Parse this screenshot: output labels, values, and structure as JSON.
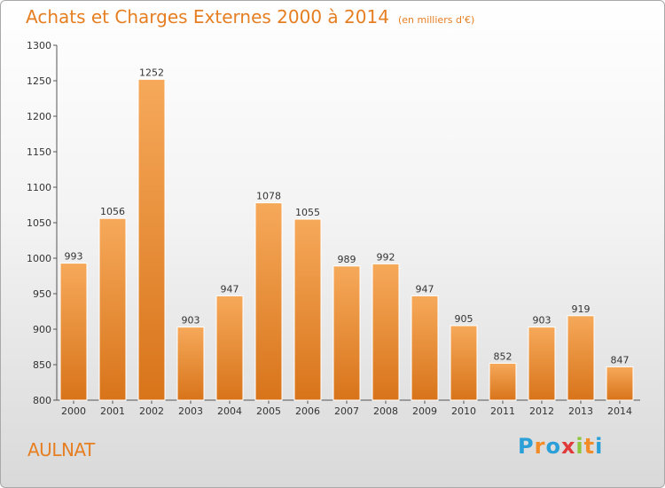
{
  "title": "Achats et Charges Externes 2000 à 2014",
  "unit": "(en milliers d'€)",
  "location": "AULNAT",
  "brand": {
    "letters": [
      "P",
      "r",
      "o",
      "x",
      "i",
      "t",
      "i"
    ],
    "colors": [
      "#2a9fd8",
      "#f28c28",
      "#2a9fd8",
      "#e03a3a",
      "#8cc63f",
      "#f28c28",
      "#2a9fd8"
    ]
  },
  "colors": {
    "bar_light": "#f6a95a",
    "bar_dark": "#d8741a",
    "title": "#e67e22"
  },
  "chart_data": {
    "type": "bar",
    "categories": [
      "2000",
      "2001",
      "2002",
      "2003",
      "2004",
      "2005",
      "2006",
      "2007",
      "2008",
      "2009",
      "2010",
      "2011",
      "2012",
      "2013",
      "2014"
    ],
    "values": [
      993,
      1056,
      1252,
      903,
      947,
      1078,
      1055,
      989,
      992,
      947,
      905,
      852,
      903,
      919,
      847
    ],
    "ylim": [
      800,
      1300
    ],
    "yticks": [
      800,
      850,
      900,
      950,
      1000,
      1050,
      1100,
      1150,
      1200,
      1250,
      1300
    ],
    "grid": false,
    "xlabel": "",
    "ylabel": ""
  }
}
